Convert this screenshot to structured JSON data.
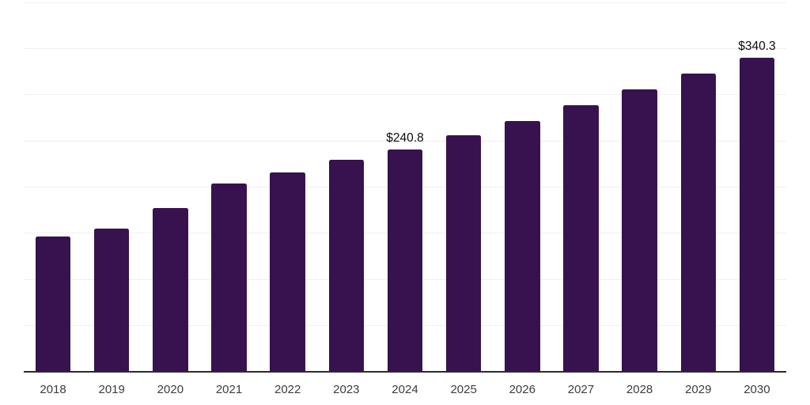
{
  "chart_data": {
    "type": "bar",
    "title": "",
    "xlabel": "",
    "ylabel": "",
    "categories": [
      "2018",
      "2019",
      "2020",
      "2021",
      "2022",
      "2023",
      "2024",
      "2025",
      "2026",
      "2027",
      "2028",
      "2029",
      "2030"
    ],
    "values": [
      146.4,
      155.1,
      177.4,
      204.2,
      216.2,
      230.0,
      240.8,
      256.0,
      271.8,
      288.5,
      305.6,
      323.3,
      340.3
    ],
    "data_labels": [
      {
        "category": "2024",
        "text": "$240.8"
      },
      {
        "category": "2030",
        "text": "$340.3"
      }
    ],
    "ylim": [
      0,
      400
    ],
    "grid": {
      "show": true,
      "interval": 50,
      "color": "#f0f0f0"
    },
    "legend": "none",
    "colors": {
      "bar": "#38124E",
      "axis_line": "#2b2b2b",
      "tick_label": "#3d3d3d",
      "data_label": "#0d0d0d"
    }
  }
}
